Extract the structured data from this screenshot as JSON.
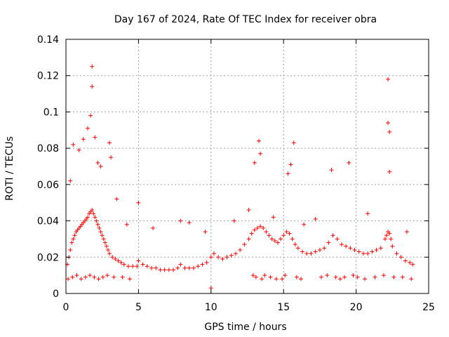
{
  "chart_data": {
    "type": "scatter",
    "title": "Day 167 of 2024, Rate Of TEC Index for receiver obra",
    "xlabel": "GPS time / hours",
    "ylabel": "ROTI / TECUs",
    "xlim": [
      0,
      25
    ],
    "ylim": [
      0,
      0.14
    ],
    "xticks": [
      0,
      5,
      10,
      15,
      20,
      25
    ],
    "xtick_labels": [
      "0",
      "5",
      "10",
      "15",
      "20",
      "25"
    ],
    "yticks": [
      0,
      0.02,
      0.04,
      0.06,
      0.08,
      0.1,
      0.12,
      0.14
    ],
    "ytick_labels": [
      "0",
      "0.02",
      "0.04",
      "0.06",
      "0.08",
      "0.1",
      "0.12",
      "0.14"
    ],
    "grid": true,
    "marker": "+",
    "color": "#ff0000",
    "series": [
      {
        "name": "ROTI",
        "x": [
          0.1,
          0.2,
          0.3,
          0.4,
          0.5,
          0.6,
          0.7,
          0.8,
          0.9,
          1.0,
          1.1,
          1.2,
          1.3,
          1.4,
          1.5,
          1.6,
          1.7,
          1.8,
          1.9,
          2.0,
          2.1,
          2.2,
          2.3,
          2.4,
          2.5,
          2.6,
          2.7,
          2.8,
          2.9,
          3.0,
          3.2,
          3.4,
          3.6,
          3.8,
          4.0,
          4.3,
          4.6,
          4.9,
          5.0,
          5.3,
          5.6,
          5.9,
          6.2,
          6.5,
          6.8,
          7.1,
          7.4,
          7.7,
          7.9,
          8.2,
          8.5,
          8.8,
          9.1,
          9.4,
          9.7,
          10.0,
          10.2,
          10.5,
          10.8,
          11.1,
          11.4,
          11.7,
          12.0,
          12.3,
          12.6,
          12.8,
          13.0,
          13.2,
          13.4,
          13.6,
          13.8,
          14.0,
          14.2,
          14.4,
          14.6,
          14.8,
          15.0,
          15.2,
          15.4,
          15.6,
          15.8,
          16.0,
          16.3,
          16.6,
          16.9,
          17.2,
          17.5,
          17.8,
          18.1,
          18.4,
          18.7,
          19.0,
          19.3,
          19.6,
          19.9,
          20.2,
          20.5,
          20.8,
          21.1,
          21.4,
          21.7,
          22.0,
          22.1,
          22.2,
          22.3,
          22.4,
          22.5,
          22.8,
          23.1,
          23.4,
          23.7,
          23.9,
          0.3,
          0.5,
          0.9,
          1.2,
          1.5,
          1.7,
          1.8,
          1.8,
          2.0,
          2.2,
          2.4,
          3.0,
          3.1,
          13.0,
          13.3,
          13.4,
          15.3,
          15.5,
          15.7,
          18.3,
          19.5,
          22.2,
          22.2,
          22.3,
          22.3,
          10.0,
          7.9,
          5.0,
          3.5,
          4.2,
          6.0,
          8.5,
          9.6,
          11.6,
          12.6,
          14.3,
          16.4,
          17.2,
          20.8,
          23.5,
          0.15,
          0.45,
          0.75,
          1.05,
          1.35,
          1.65,
          1.95,
          2.25,
          2.55,
          2.85,
          3.3,
          3.9,
          4.4,
          12.9,
          13.1,
          13.5,
          13.7,
          14.1,
          14.5,
          14.9,
          15.1,
          15.9,
          16.2,
          17.6,
          18.0,
          18.6,
          18.9,
          19.2,
          19.8,
          20.1,
          20.6,
          21.3,
          21.9,
          22.6,
          23.2,
          23.8
        ],
        "y": [
          0.016,
          0.02,
          0.024,
          0.028,
          0.03,
          0.032,
          0.034,
          0.035,
          0.036,
          0.037,
          0.038,
          0.039,
          0.04,
          0.041,
          0.042,
          0.044,
          0.045,
          0.046,
          0.044,
          0.042,
          0.04,
          0.038,
          0.036,
          0.034,
          0.032,
          0.03,
          0.028,
          0.026,
          0.024,
          0.022,
          0.02,
          0.019,
          0.018,
          0.017,
          0.016,
          0.015,
          0.015,
          0.015,
          0.018,
          0.016,
          0.015,
          0.014,
          0.014,
          0.013,
          0.013,
          0.013,
          0.013,
          0.014,
          0.016,
          0.014,
          0.014,
          0.014,
          0.015,
          0.016,
          0.017,
          0.02,
          0.022,
          0.02,
          0.019,
          0.02,
          0.021,
          0.022,
          0.024,
          0.027,
          0.03,
          0.033,
          0.035,
          0.036,
          0.037,
          0.036,
          0.034,
          0.032,
          0.03,
          0.029,
          0.028,
          0.03,
          0.032,
          0.034,
          0.033,
          0.03,
          0.027,
          0.025,
          0.023,
          0.022,
          0.022,
          0.023,
          0.024,
          0.025,
          0.028,
          0.032,
          0.03,
          0.027,
          0.026,
          0.025,
          0.024,
          0.023,
          0.022,
          0.022,
          0.023,
          0.024,
          0.025,
          0.03,
          0.032,
          0.034,
          0.033,
          0.03,
          0.026,
          0.022,
          0.02,
          0.018,
          0.017,
          0.016,
          0.062,
          0.082,
          0.079,
          0.085,
          0.091,
          0.098,
          0.114,
          0.125,
          0.086,
          0.072,
          0.07,
          0.083,
          0.075,
          0.072,
          0.084,
          0.077,
          0.066,
          0.071,
          0.083,
          0.068,
          0.072,
          0.118,
          0.094,
          0.089,
          0.067,
          0.003,
          0.04,
          0.05,
          0.052,
          0.038,
          0.036,
          0.039,
          0.034,
          0.04,
          0.046,
          0.042,
          0.038,
          0.041,
          0.044,
          0.034,
          0.008,
          0.009,
          0.01,
          0.008,
          0.009,
          0.01,
          0.009,
          0.008,
          0.009,
          0.01,
          0.009,
          0.009,
          0.008,
          0.01,
          0.009,
          0.008,
          0.01,
          0.009,
          0.008,
          0.008,
          0.01,
          0.009,
          0.008,
          0.009,
          0.01,
          0.009,
          0.008,
          0.009,
          0.01,
          0.009,
          0.008,
          0.009,
          0.01,
          0.009,
          0.009,
          0.008
        ]
      }
    ]
  }
}
